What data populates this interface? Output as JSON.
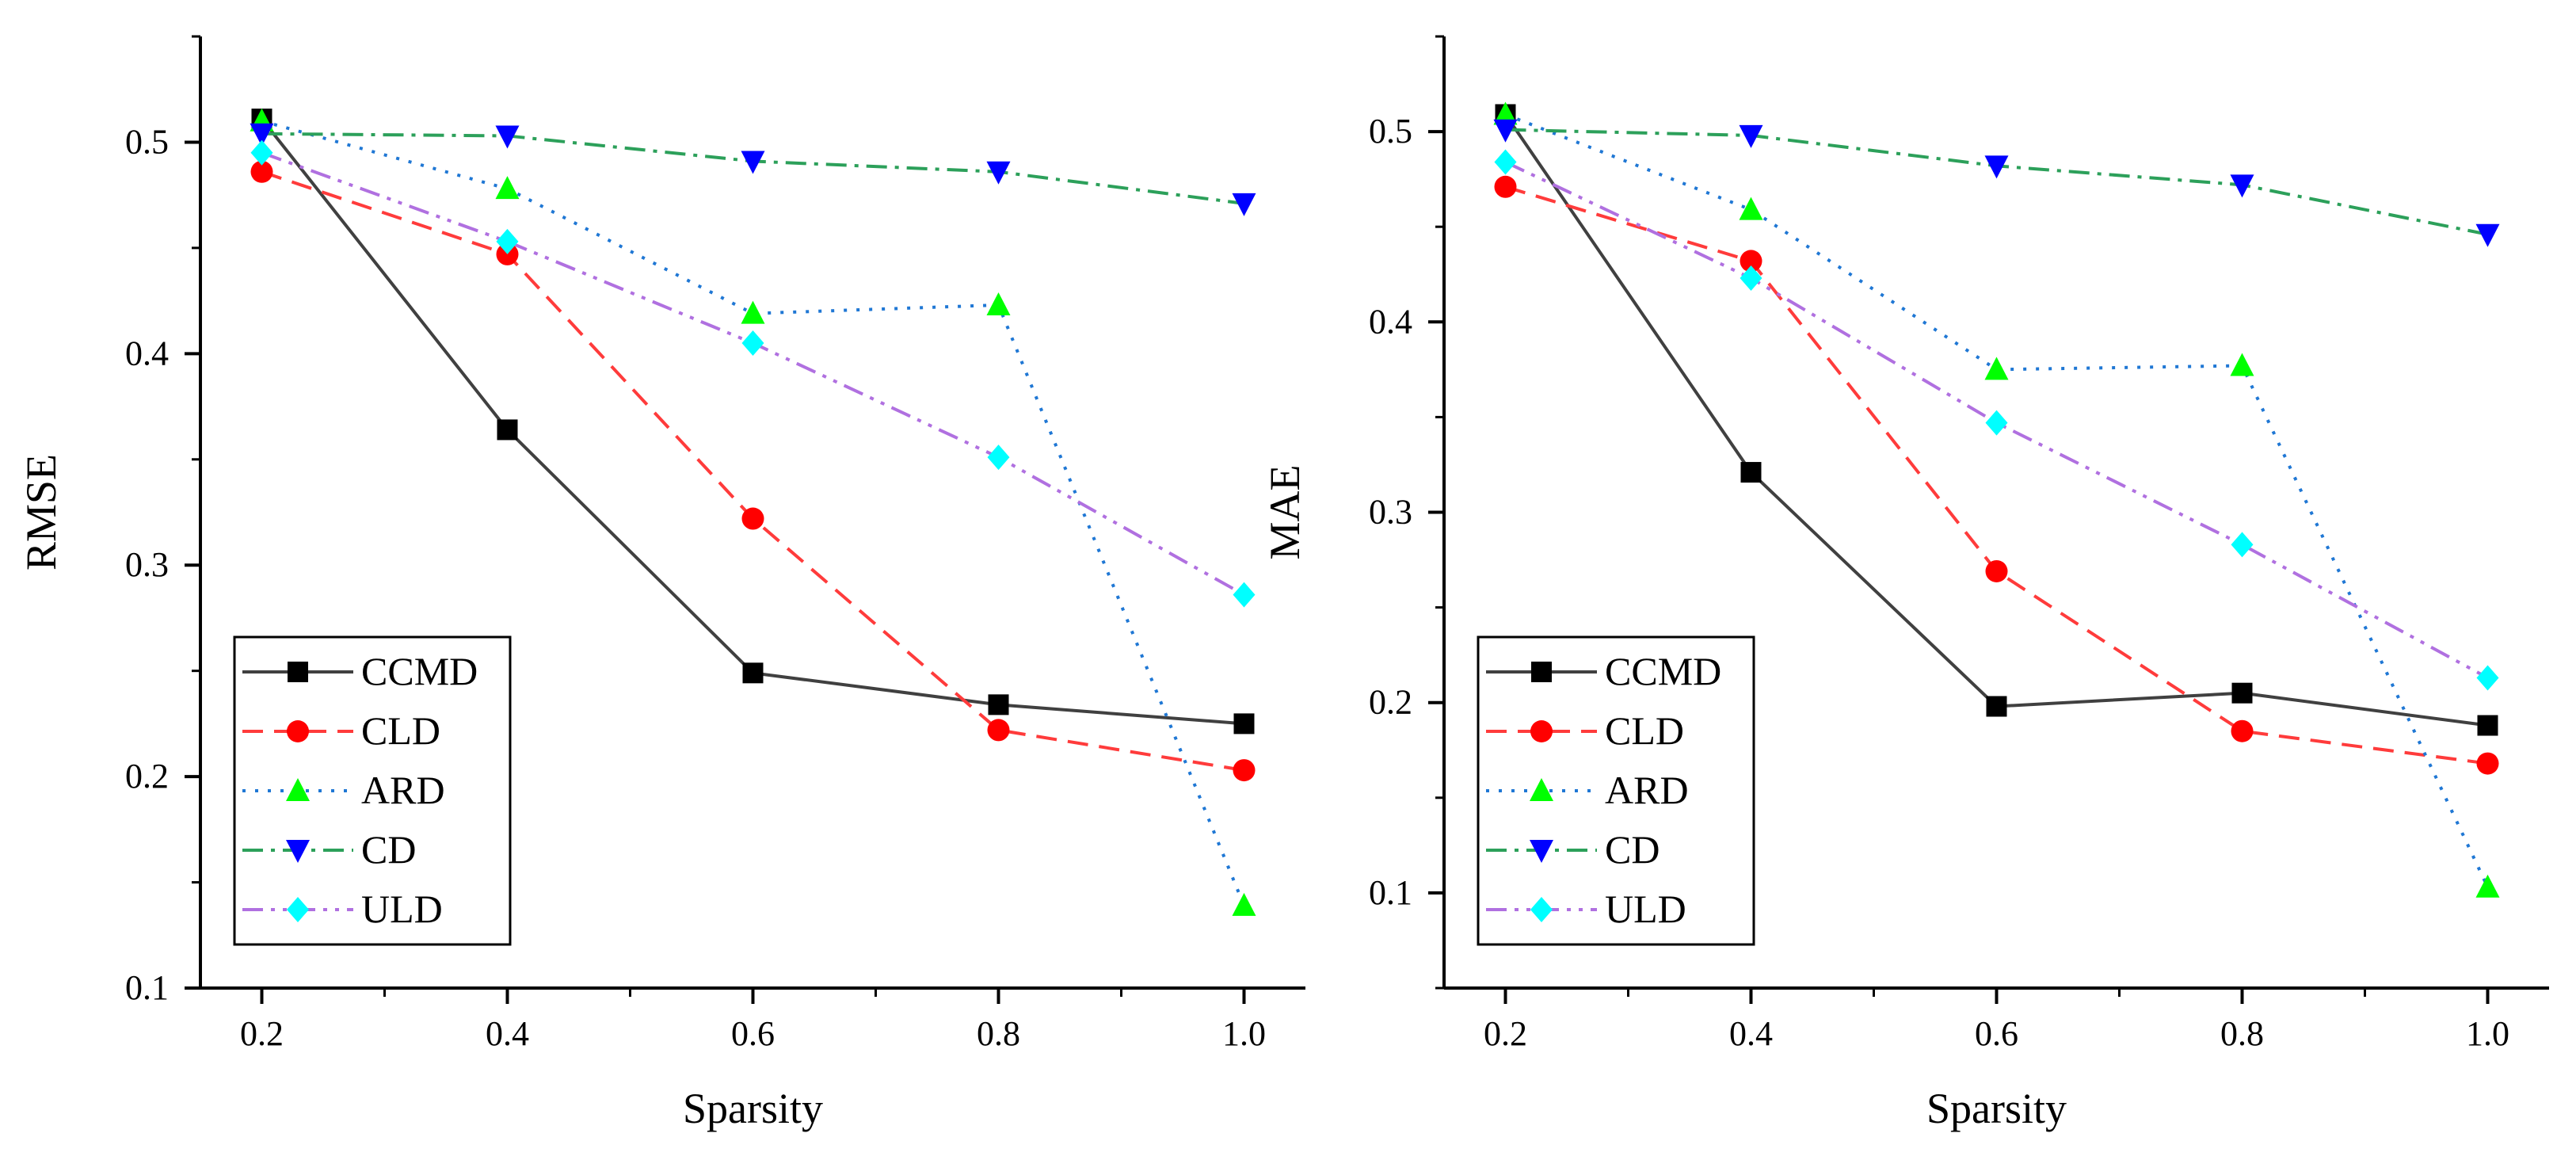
{
  "chart_data": [
    {
      "type": "line",
      "title": "",
      "xlabel": "Sparsity",
      "ylabel": "RMSE",
      "xlim": [
        0.15,
        1.05
      ],
      "ylim": [
        0.1,
        0.55
      ],
      "x_ticks": [
        "0.2",
        "0.4",
        "0.6",
        "0.8",
        "1.0"
      ],
      "y_ticks": [
        "0.1",
        "0.2",
        "0.3",
        "0.4",
        "0.5"
      ],
      "legend_position": "bottom-left",
      "x": [
        0.2,
        0.4,
        0.6,
        0.8,
        1.0
      ],
      "series": [
        {
          "name": "CCMD",
          "color": "#404040",
          "dash": "solid",
          "marker": "square",
          "marker_color": "#000000",
          "values": [
            0.511,
            0.364,
            0.249,
            0.234,
            0.225
          ]
        },
        {
          "name": "CLD",
          "color": "#ff3b3b",
          "dash": "dashed",
          "marker": "circle",
          "marker_color": "#ff0000",
          "values": [
            0.486,
            0.447,
            0.322,
            0.222,
            0.203
          ]
        },
        {
          "name": "ARD",
          "color": "#1f77d4",
          "dash": "dotted",
          "marker": "triangle-up",
          "marker_color": "#00ff00",
          "values": [
            0.51,
            0.478,
            0.419,
            0.423,
            0.139
          ]
        },
        {
          "name": "CD",
          "color": "#2ca05a",
          "dash": "dashdot",
          "marker": "triangle-down",
          "marker_color": "#0000ff",
          "values": [
            0.504,
            0.503,
            0.491,
            0.486,
            0.471
          ]
        },
        {
          "name": "ULD",
          "color": "#b070e0",
          "dash": "dashdotdot",
          "marker": "diamond",
          "marker_color": "#00ffff",
          "values": [
            0.495,
            0.453,
            0.405,
            0.351,
            0.286
          ]
        }
      ]
    },
    {
      "type": "line",
      "title": "",
      "xlabel": "Sparsity",
      "ylabel": "MAE",
      "xlim": [
        0.15,
        1.05
      ],
      "ylim": [
        0.05,
        0.55
      ],
      "x_ticks": [
        "0.2",
        "0.4",
        "0.6",
        "0.8",
        "1.0"
      ],
      "y_ticks": [
        "0.1",
        "0.2",
        "0.3",
        "0.4",
        "0.5"
      ],
      "legend_position": "bottom-left",
      "x": [
        0.2,
        0.4,
        0.6,
        0.8,
        1.0
      ],
      "series": [
        {
          "name": "CCMD",
          "color": "#404040",
          "dash": "solid",
          "marker": "square",
          "marker_color": "#000000",
          "values": [
            0.509,
            0.321,
            0.198,
            0.205,
            0.188
          ]
        },
        {
          "name": "CLD",
          "color": "#ff3b3b",
          "dash": "dashed",
          "marker": "circle",
          "marker_color": "#ff0000",
          "values": [
            0.471,
            0.432,
            0.269,
            0.185,
            0.168
          ]
        },
        {
          "name": "ARD",
          "color": "#1f77d4",
          "dash": "dotted",
          "marker": "triangle-up",
          "marker_color": "#00ff00",
          "values": [
            0.509,
            0.459,
            0.375,
            0.377,
            0.103
          ]
        },
        {
          "name": "CD",
          "color": "#2ca05a",
          "dash": "dashdot",
          "marker": "triangle-down",
          "marker_color": "#0000ff",
          "values": [
            0.501,
            0.498,
            0.482,
            0.472,
            0.446
          ]
        },
        {
          "name": "ULD",
          "color": "#b070e0",
          "dash": "dashdotdot",
          "marker": "diamond",
          "marker_color": "#00ffff",
          "values": [
            0.484,
            0.423,
            0.347,
            0.283,
            0.213
          ]
        }
      ]
    }
  ]
}
